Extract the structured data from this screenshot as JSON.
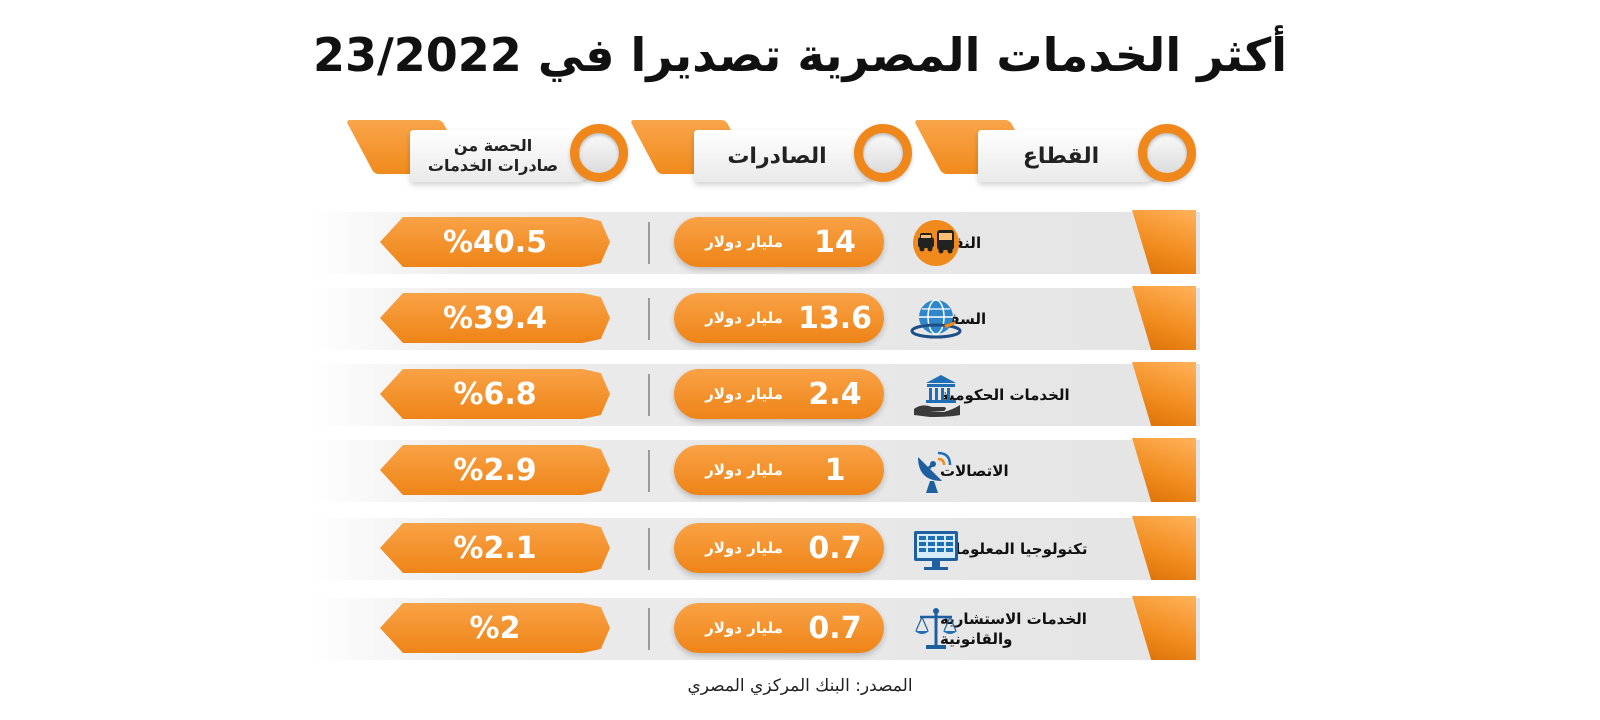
{
  "title": "أكثر الخدمات المصرية تصديرا في 23/2022",
  "headers": {
    "sector": "القطاع",
    "exports": "الصادرات",
    "share_line1": "الحصة من",
    "share_line2": "صادرات الخدمات"
  },
  "unit_label": "مليار دولار",
  "colors": {
    "accent": "#f08a1c",
    "band": "#e6e6e6",
    "icon_blue": "#1e6fb5"
  },
  "chart_data": {
    "type": "table",
    "columns": [
      "القطاع",
      "الصادرات",
      "الحصة من صادرات الخدمات"
    ],
    "rows": [
      {
        "sector": "النقل",
        "sector_line2": "",
        "icon": "bus-taxi-icon",
        "exports": "14",
        "share": "%40.5"
      },
      {
        "sector": "السفر",
        "sector_line2": "",
        "icon": "globe-plane-icon",
        "exports": "13.6",
        "share": "%39.4"
      },
      {
        "sector": "الخدمات الحكومية",
        "sector_line2": "",
        "icon": "government-building-icon",
        "exports": "2.4",
        "share": "%6.8"
      },
      {
        "sector": "الاتصالات",
        "sector_line2": "",
        "icon": "satellite-dish-icon",
        "exports": "1",
        "share": "%2.9"
      },
      {
        "sector": "تكنولوجيا المعلومات",
        "sector_line2": "",
        "icon": "computer-monitor-icon",
        "exports": "0.7",
        "share": "%2.1"
      },
      {
        "sector": "الخدمات الاستشارية",
        "sector_line2": "والقانونية",
        "icon": "justice-scales-icon",
        "exports": "0.7",
        "share": "%2"
      }
    ]
  },
  "source": "المصدر: البنك المركزي المصري"
}
